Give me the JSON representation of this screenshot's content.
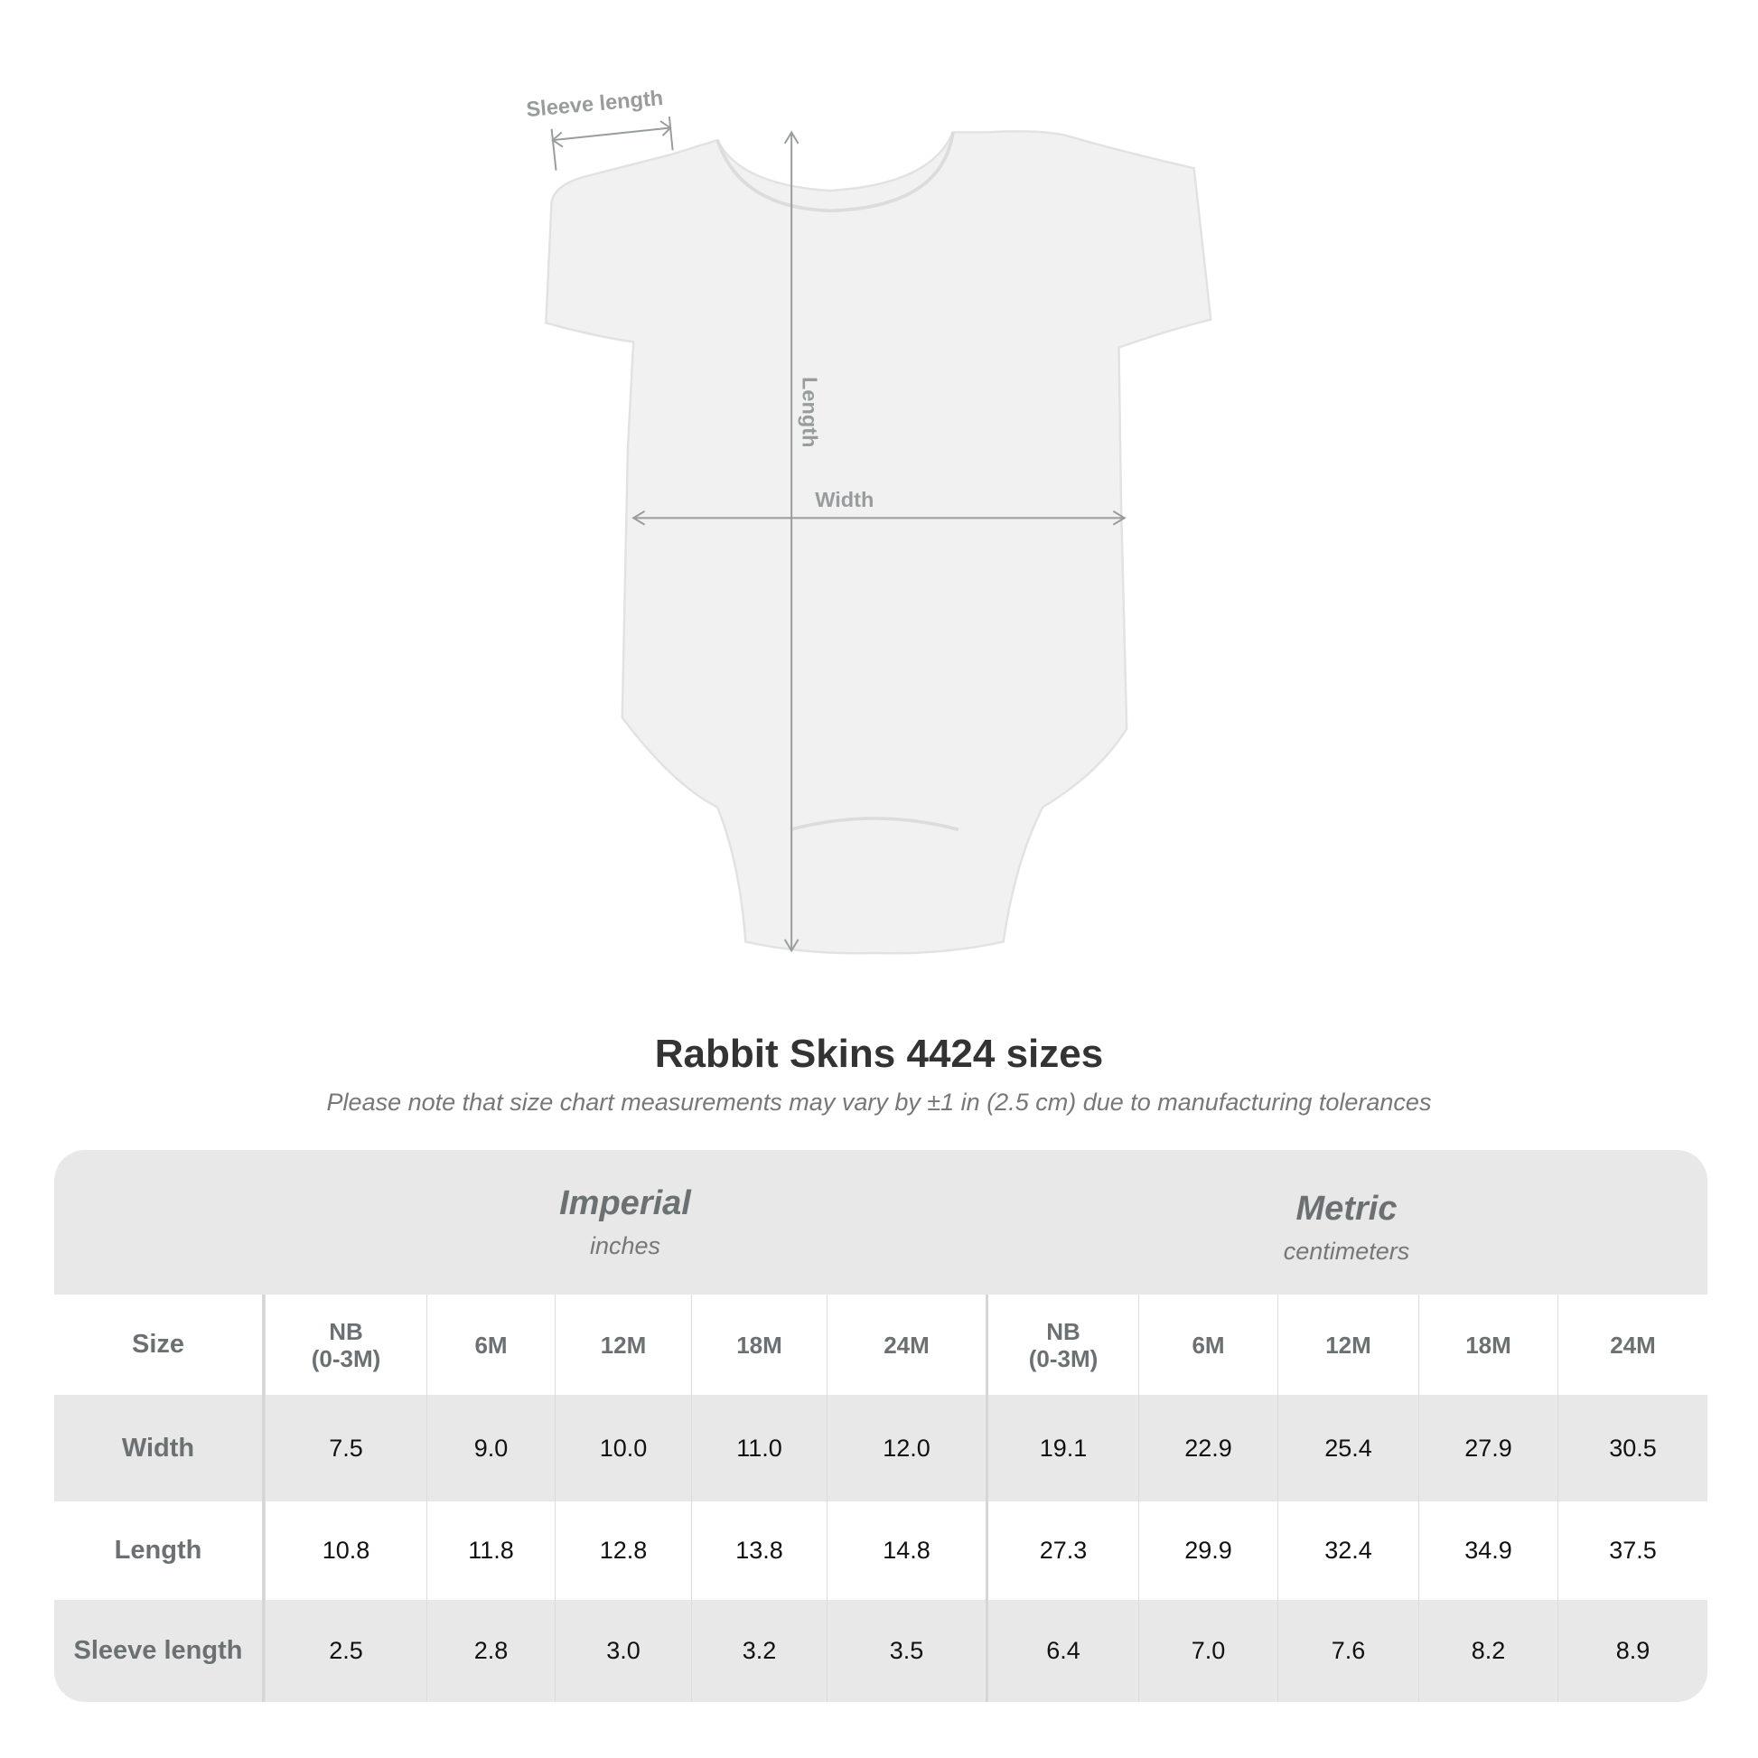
{
  "diagram": {
    "labels": {
      "sleeve": "Sleeve length",
      "length": "Length",
      "width": "Width"
    }
  },
  "title": "Rabbit Skins 4424 sizes",
  "note": "Please note that size chart measurements may vary by ±1 in (2.5 cm) due to manufacturing tolerances",
  "table": {
    "imperial": {
      "name": "Imperial",
      "unit": "inches"
    },
    "metric": {
      "name": "Metric",
      "unit": "centimeters"
    },
    "size_label": "Size",
    "sizes": [
      "NB\n(0-3M)",
      "6M",
      "12M",
      "18M",
      "24M",
      "NB\n(0-3M)",
      "6M",
      "12M",
      "18M",
      "24M"
    ],
    "rows": [
      {
        "label": "Width",
        "values": [
          "7.5",
          "9.0",
          "10.0",
          "11.0",
          "12.0",
          "19.1",
          "22.9",
          "25.4",
          "27.9",
          "30.5"
        ]
      },
      {
        "label": "Length",
        "values": [
          "10.8",
          "11.8",
          "12.8",
          "13.8",
          "14.8",
          "27.3",
          "29.9",
          "32.4",
          "34.9",
          "37.5"
        ]
      },
      {
        "label": "Sleeve length",
        "values": [
          "2.5",
          "2.8",
          "3.0",
          "3.2",
          "3.5",
          "6.4",
          "7.0",
          "7.6",
          "8.2",
          "8.9"
        ]
      }
    ]
  },
  "colors": {
    "header_bg": "#e8e8e8",
    "label_text": "#6b7173",
    "measure_line": "#999c9c"
  }
}
